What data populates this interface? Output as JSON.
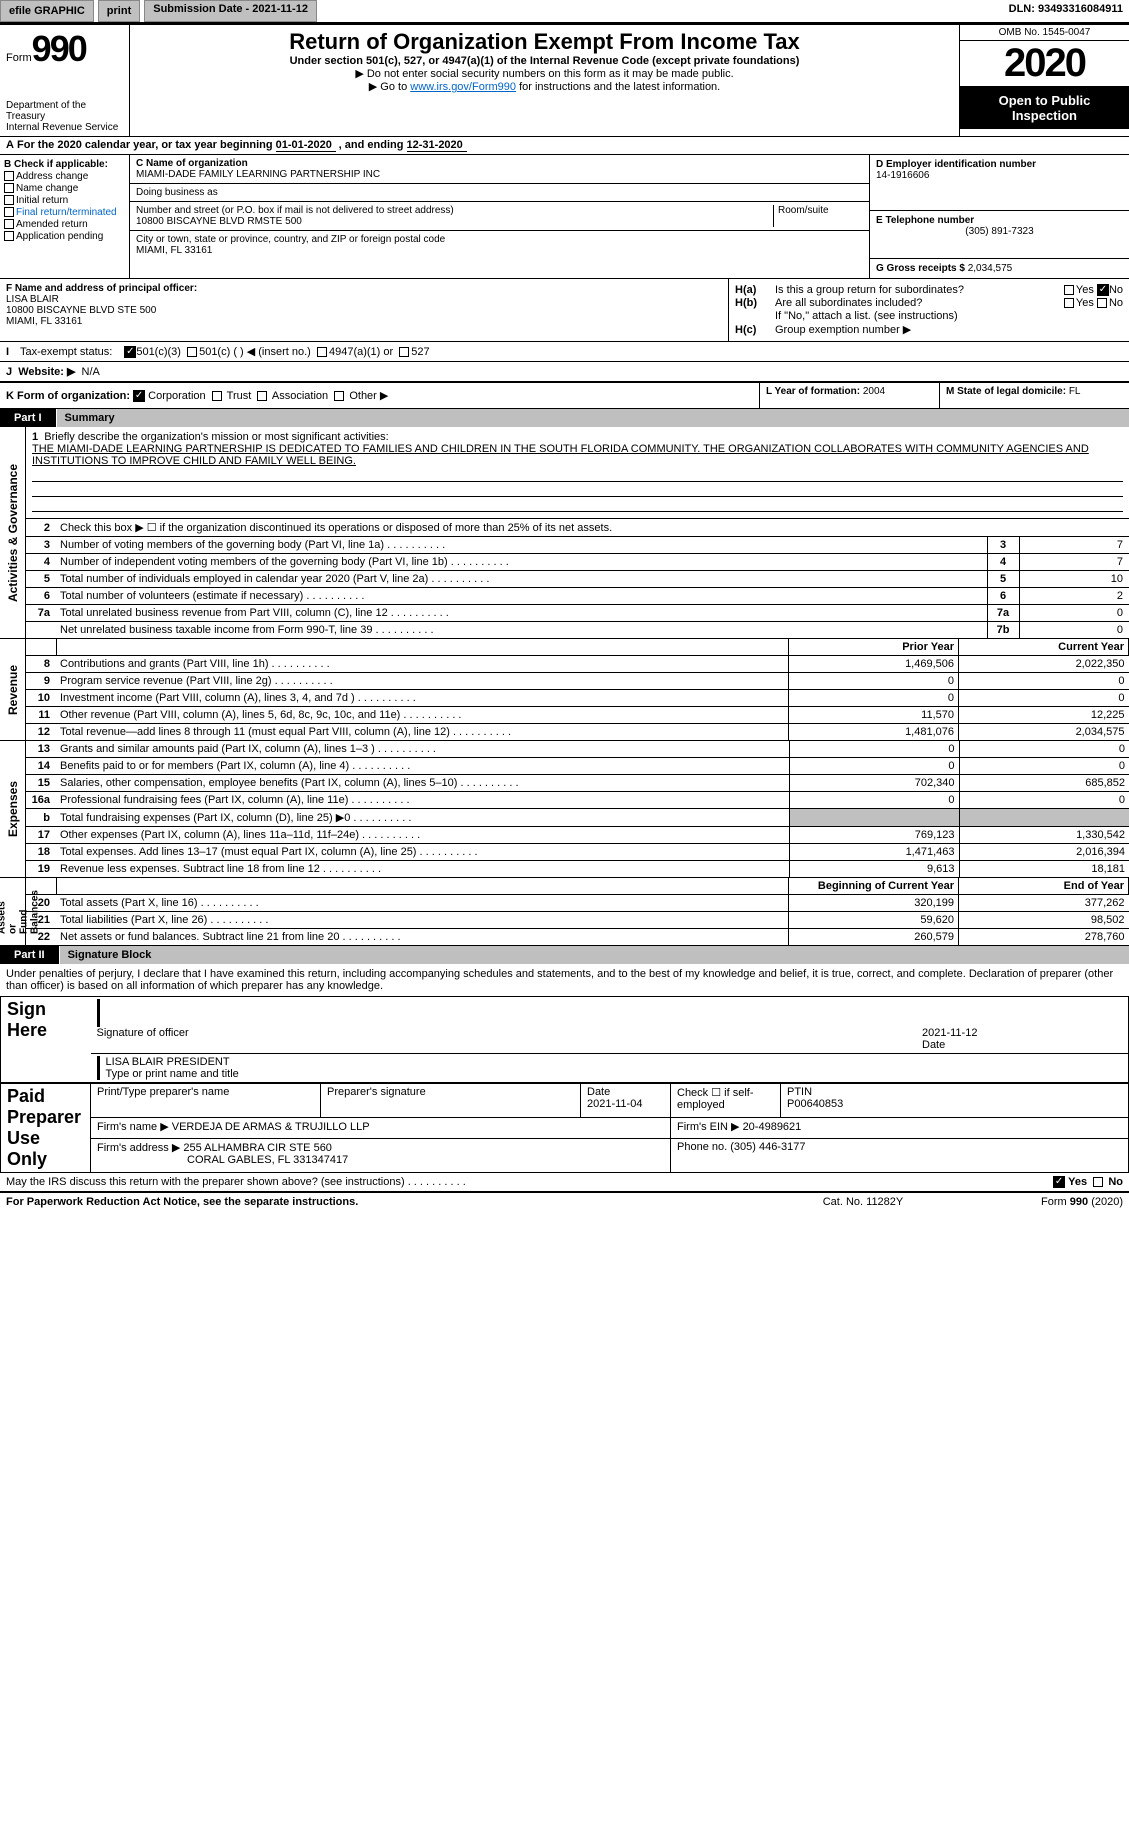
{
  "topbar": {
    "efile": "efile GRAPHIC",
    "print": "print",
    "sub_label": "Submission Date - ",
    "sub_date": "2021-11-12",
    "dln_label": "DLN: ",
    "dln": "93493316084911"
  },
  "header": {
    "form_small": "Form",
    "form_big": "990",
    "dept": "Department of the Treasury\nInternal Revenue Service",
    "title": "Return of Organization Exempt From Income Tax",
    "sub1": "Under section 501(c), 527, or 4947(a)(1) of the Internal Revenue Code (except private foundations)",
    "sub2a": "▶ Do not enter social security numbers on this form as it may be made public.",
    "sub2b_pre": "▶ Go to ",
    "sub2b_link": "www.irs.gov/Form990",
    "sub2b_post": " for instructions and the latest information.",
    "omb": "OMB No. 1545-0047",
    "year": "2020",
    "open": "Open to Public\nInspection"
  },
  "calendar": {
    "text_a": "For the 2020 calendar year, or tax year beginning ",
    "begin": "01-01-2020",
    "text_b": " , and ending ",
    "end": "12-31-2020"
  },
  "box_b": {
    "label": "B Check if applicable:",
    "items": [
      "Address change",
      "Name change",
      "Initial return",
      "Final return/terminated",
      "Amended return",
      "Application pending"
    ]
  },
  "box_c": {
    "name_label": "C Name of organization",
    "name": "MIAMI-DADE FAMILY LEARNING PARTNERSHIP INC",
    "dba_label": "Doing business as",
    "dba": "",
    "street_label": "Number and street (or P.O. box if mail is not delivered to street address)",
    "room_label": "Room/suite",
    "street": "10800 BISCAYNE BLVD RMSTE 500",
    "city_label": "City or town, state or province, country, and ZIP or foreign postal code",
    "city": "MIAMI, FL  33161"
  },
  "box_d": {
    "ein_label": "D Employer identification number",
    "ein": "14-1916606",
    "phone_label": "E Telephone number",
    "phone": "(305) 891-7323",
    "gross_label": "G Gross receipts $ ",
    "gross": "2,034,575"
  },
  "box_f": {
    "label": "F Name and address of principal officer:",
    "name": "LISA BLAIR",
    "addr1": "10800 BISCAYNE BLVD STE 500",
    "addr2": "MIAMI, FL  33161"
  },
  "box_h": {
    "ha_label": "H(a)",
    "ha_text": "Is this a group return for subordinates?",
    "ha_yes": "Yes",
    "ha_no": "No",
    "hb_label": "H(b)",
    "hb_text": "Are all subordinates included?",
    "hb_note": "If \"No,\" attach a list. (see instructions)",
    "hc_label": "H(c)",
    "hc_text": "Group exemption number ▶"
  },
  "line_i": {
    "label": "I",
    "text": "Tax-exempt status:",
    "o1": "501(c)(3)",
    "o2": "501(c) (  ) ◀ (insert no.)",
    "o3": "4947(a)(1) or",
    "o4": "527"
  },
  "line_j": {
    "label": "J",
    "text": "Website: ▶",
    "value": "N/A"
  },
  "line_k": {
    "label": "K Form of organization:",
    "o1": "Corporation",
    "o2": "Trust",
    "o3": "Association",
    "o4": "Other ▶",
    "l_label": "L Year of formation: ",
    "l_val": "2004",
    "m_label": "M State of legal domicile: ",
    "m_val": "FL"
  },
  "parts": {
    "p1": "Part I",
    "p1_title": "Summary",
    "p2": "Part II",
    "p2_title": "Signature Block"
  },
  "brief": {
    "num": "1",
    "label": "Briefly describe the organization's mission or most significant activities:",
    "text": "THE MIAMI-DADE LEARNING PARTNERSHIP IS DEDICATED TO FAMILIES AND CHILDREN IN THE SOUTH FLORIDA COMMUNITY. THE ORGANIZATION COLLABORATES WITH COMMUNITY AGENCIES AND INSTITUTIONS TO IMPROVE CHILD AND FAMILY WELL BEING."
  },
  "gov_lines": [
    {
      "n": "2",
      "t": "Check this box ▶ ☐ if the organization discontinued its operations or disposed of more than 25% of its net assets.",
      "ln": "",
      "v": ""
    },
    {
      "n": "3",
      "t": "Number of voting members of the governing body (Part VI, line 1a)",
      "ln": "3",
      "v": "7"
    },
    {
      "n": "4",
      "t": "Number of independent voting members of the governing body (Part VI, line 1b)",
      "ln": "4",
      "v": "7"
    },
    {
      "n": "5",
      "t": "Total number of individuals employed in calendar year 2020 (Part V, line 2a)",
      "ln": "5",
      "v": "10"
    },
    {
      "n": "6",
      "t": "Total number of volunteers (estimate if necessary)",
      "ln": "6",
      "v": "2"
    },
    {
      "n": "7a",
      "t": "Total unrelated business revenue from Part VIII, column (C), line 12",
      "ln": "7a",
      "v": "0"
    },
    {
      "n": "",
      "t": "Net unrelated business taxable income from Form 990-T, line 39",
      "ln": "7b",
      "v": "0"
    }
  ],
  "fin_headers": {
    "prior": "Prior Year",
    "curr": "Current Year",
    "boy": "Beginning of Current Year",
    "eoy": "End of Year"
  },
  "revenue": [
    {
      "n": "8",
      "t": "Contributions and grants (Part VIII, line 1h)",
      "p": "1,469,506",
      "c": "2,022,350"
    },
    {
      "n": "9",
      "t": "Program service revenue (Part VIII, line 2g)",
      "p": "0",
      "c": "0"
    },
    {
      "n": "10",
      "t": "Investment income (Part VIII, column (A), lines 3, 4, and 7d )",
      "p": "0",
      "c": "0"
    },
    {
      "n": "11",
      "t": "Other revenue (Part VIII, column (A), lines 5, 6d, 8c, 9c, 10c, and 11e)",
      "p": "11,570",
      "c": "12,225"
    },
    {
      "n": "12",
      "t": "Total revenue—add lines 8 through 11 (must equal Part VIII, column (A), line 12)",
      "p": "1,481,076",
      "c": "2,034,575"
    }
  ],
  "expenses": [
    {
      "n": "13",
      "t": "Grants and similar amounts paid (Part IX, column (A), lines 1–3 )",
      "p": "0",
      "c": "0"
    },
    {
      "n": "14",
      "t": "Benefits paid to or for members (Part IX, column (A), line 4)",
      "p": "0",
      "c": "0"
    },
    {
      "n": "15",
      "t": "Salaries, other compensation, employee benefits (Part IX, column (A), lines 5–10)",
      "p": "702,340",
      "c": "685,852"
    },
    {
      "n": "16a",
      "t": "Professional fundraising fees (Part IX, column (A), line 11e)",
      "p": "0",
      "c": "0"
    },
    {
      "n": "b",
      "t": "Total fundraising expenses (Part IX, column (D), line 25) ▶0",
      "p": "GREY",
      "c": "GREY"
    },
    {
      "n": "17",
      "t": "Other expenses (Part IX, column (A), lines 11a–11d, 11f–24e)",
      "p": "769,123",
      "c": "1,330,542"
    },
    {
      "n": "18",
      "t": "Total expenses. Add lines 13–17 (must equal Part IX, column (A), line 25)",
      "p": "1,471,463",
      "c": "2,016,394"
    },
    {
      "n": "19",
      "t": "Revenue less expenses. Subtract line 18 from line 12",
      "p": "9,613",
      "c": "18,181"
    }
  ],
  "net_assets": [
    {
      "n": "20",
      "t": "Total assets (Part X, line 16)",
      "p": "320,199",
      "c": "377,262"
    },
    {
      "n": "21",
      "t": "Total liabilities (Part X, line 26)",
      "p": "59,620",
      "c": "98,502"
    },
    {
      "n": "22",
      "t": "Net assets or fund balances. Subtract line 21 from line 20",
      "p": "260,579",
      "c": "278,760"
    }
  ],
  "side_labels": {
    "gov": "Activities & Governance",
    "rev": "Revenue",
    "exp": "Expenses",
    "net": "Net Assets or\nFund Balances"
  },
  "sig": {
    "penalty": "Under penalties of perjury, I declare that I have examined this return, including accompanying schedules and statements, and to the best of my knowledge and belief, it is true, correct, and complete. Declaration of preparer (other than officer) is based on all information of which preparer has any knowledge.",
    "sign_here": "Sign Here",
    "sig_officer": "Signature of officer",
    "date": "Date",
    "sig_date": "2021-11-12",
    "officer_name": "LISA BLAIR  PRESIDENT",
    "type_name": "Type or print name and title",
    "paid": "Paid Preparer Use Only",
    "prep_name_label": "Print/Type preparer's name",
    "prep_sig_label": "Preparer's signature",
    "prep_date_label": "Date",
    "prep_date": "2021-11-04",
    "check_if": "Check ☐ if self-employed",
    "ptin_label": "PTIN",
    "ptin": "P00640853",
    "firm_name_label": "Firm's name    ▶ ",
    "firm_name": "VERDEJA DE ARMAS & TRUJILLO LLP",
    "firm_ein_label": "Firm's EIN ▶ ",
    "firm_ein": "20-4989621",
    "firm_addr_label": "Firm's address ▶ ",
    "firm_addr1": "255 ALHAMBRA CIR STE 560",
    "firm_addr2": "CORAL GABLES, FL  331347417",
    "firm_phone_label": "Phone no. ",
    "firm_phone": "(305) 446-3177",
    "discuss": "May the IRS discuss this return with the preparer shown above? (see instructions)",
    "yes": "Yes",
    "no": "No"
  },
  "footer": {
    "left": "For Paperwork Reduction Act Notice, see the separate instructions.",
    "mid": "Cat. No. 11282Y",
    "right_a": "Form ",
    "right_b": "990",
    "right_c": " (2020)"
  },
  "colors": {
    "black": "#000000",
    "grey": "#c0c0c0",
    "link": "#0066cc"
  }
}
